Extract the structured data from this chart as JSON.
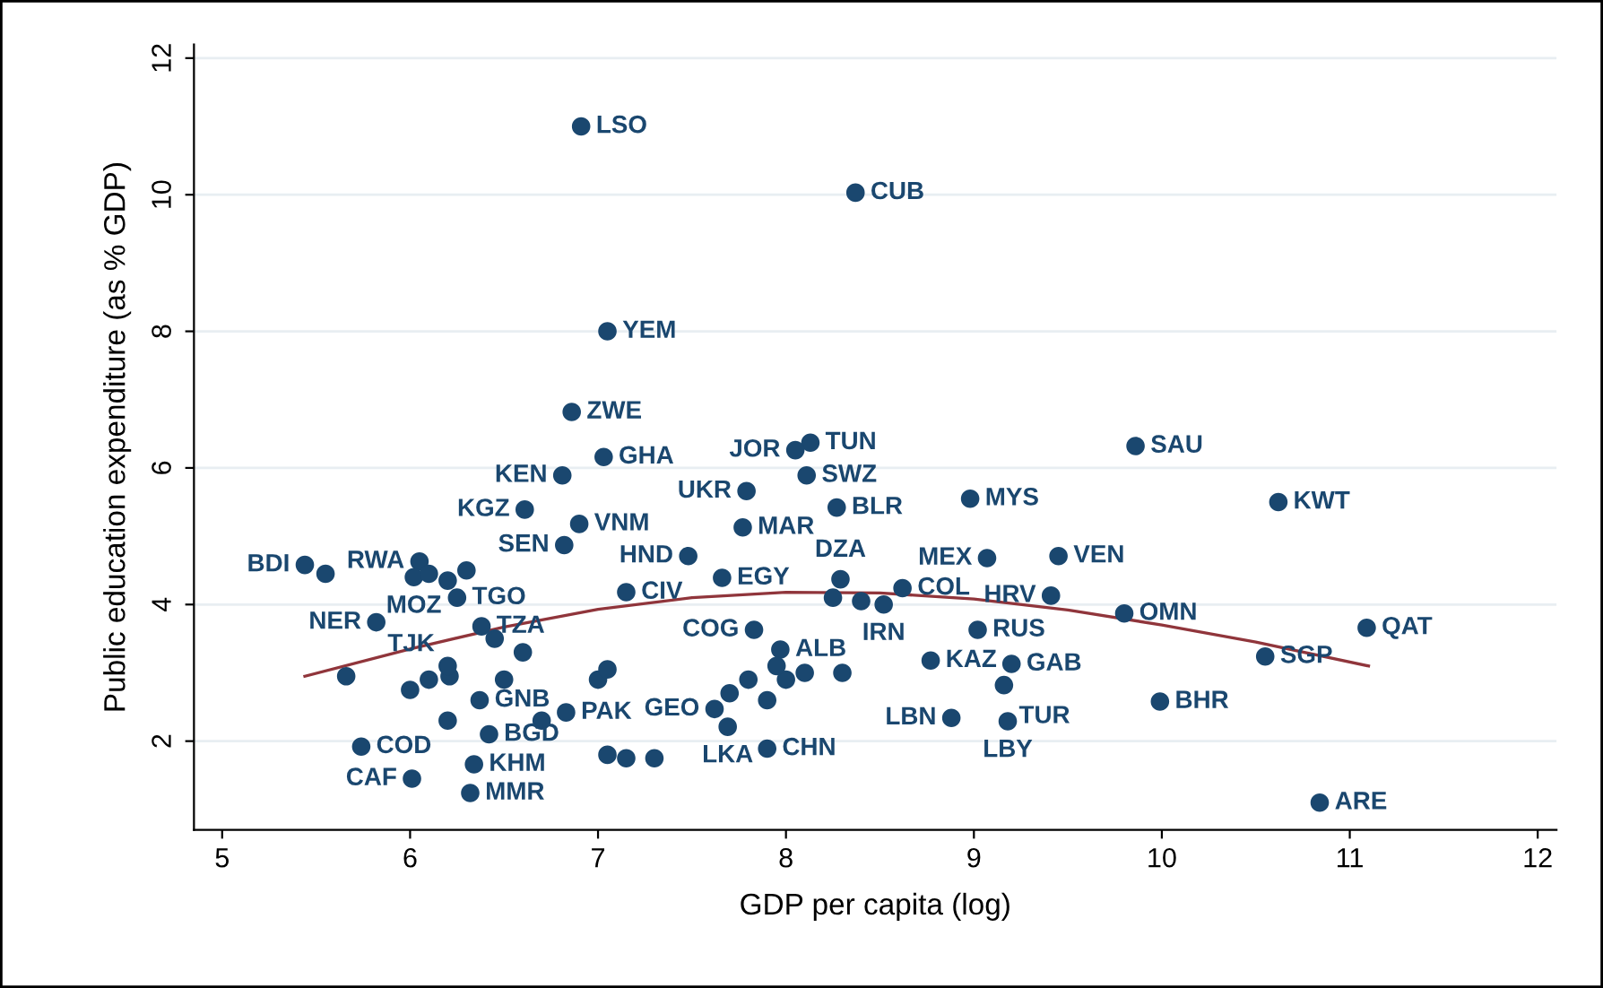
{
  "chart_data": {
    "type": "scatter",
    "xlabel": "GDP per capita (log)",
    "ylabel": "Public education expenditure (as % GDP)",
    "xlim": [
      4.85,
      12.1
    ],
    "ylim": [
      0.7,
      12.2
    ],
    "xticks": [
      5,
      6,
      7,
      8,
      9,
      10,
      11,
      12
    ],
    "yticks": [
      2,
      4,
      6,
      8,
      10,
      12
    ],
    "grid": "y",
    "marker": "circle",
    "series": [
      {
        "color": "#1a476f",
        "x": [
          6.91,
          8.37,
          7.05,
          6.86,
          7.03,
          6.81,
          6.61,
          6.9,
          6.82,
          8.13,
          8.05,
          8.11,
          7.79,
          8.27,
          7.77,
          8.98,
          9.86,
          10.62,
          9.07,
          9.45,
          9.41,
          9.8,
          11.09,
          10.55,
          10.84,
          9.99,
          9.02,
          8.77,
          9.2,
          9.16,
          8.88,
          9.18,
          8.29,
          8.62,
          8.52,
          7.66,
          7.48,
          7.15,
          7.83,
          7.97,
          7.9,
          7.69,
          7.62,
          6.05,
          5.44,
          6.02,
          6.25,
          5.82,
          6.38,
          5.74,
          6.01,
          6.34,
          6.32,
          6.42,
          6.37,
          6.21,
          6.83,
          6.1,
          5.55,
          6.2,
          6.3,
          6.45,
          6.6,
          6.2,
          6.0,
          6.1,
          6.5,
          6.2,
          6.7,
          7.0,
          7.05,
          7.05,
          7.15,
          7.3,
          7.7,
          7.8,
          7.9,
          8.0,
          8.1,
          8.3,
          8.25,
          8.4,
          7.95,
          5.66
        ],
        "values": [
          11.0,
          10.03,
          8.0,
          6.82,
          6.16,
          5.89,
          5.39,
          5.18,
          4.87,
          6.37,
          6.26,
          5.89,
          5.66,
          5.42,
          5.13,
          5.55,
          6.32,
          5.5,
          4.68,
          4.71,
          4.13,
          3.87,
          3.66,
          3.24,
          1.1,
          2.58,
          3.63,
          3.18,
          3.13,
          2.82,
          2.34,
          2.29,
          4.37,
          4.24,
          4.0,
          4.39,
          4.71,
          4.18,
          3.63,
          3.34,
          1.89,
          2.21,
          2.47,
          4.63,
          4.58,
          4.4,
          4.1,
          3.74,
          3.68,
          1.92,
          1.45,
          1.66,
          1.24,
          2.1,
          2.6,
          2.95,
          2.42,
          4.45,
          4.45,
          4.35,
          4.5,
          3.5,
          3.3,
          3.1,
          2.75,
          2.9,
          2.9,
          2.3,
          2.3,
          2.9,
          3.05,
          1.8,
          1.75,
          1.75,
          2.7,
          2.9,
          2.6,
          2.9,
          3.0,
          3.0,
          4.1,
          4.05,
          3.1,
          2.95
        ]
      },
      {
        "type": "line",
        "color": "#90353b",
        "marker": "none",
        "x": [
          5.44,
          6,
          6.5,
          7,
          7.5,
          8,
          8.5,
          9,
          9.5,
          10,
          10.5,
          11.1
        ],
        "values": [
          2.95,
          3.35,
          3.67,
          3.93,
          4.1,
          4.18,
          4.17,
          4.08,
          3.92,
          3.7,
          3.45,
          3.1
        ]
      }
    ],
    "annotations": [
      {
        "text": "LSO",
        "x": 6.91,
        "y": 11.0
      },
      {
        "text": "CUB",
        "x": 8.37,
        "y": 10.03
      },
      {
        "text": "YEM",
        "x": 7.05,
        "y": 8.0
      },
      {
        "text": "ZWE",
        "x": 6.86,
        "y": 6.82
      },
      {
        "text": "GHA",
        "x": 7.03,
        "y": 6.16
      },
      {
        "text": "KEN",
        "x": 6.81,
        "y": 5.89
      },
      {
        "text": "KGZ",
        "x": 6.61,
        "y": 5.39
      },
      {
        "text": "VNM",
        "x": 6.9,
        "y": 5.18
      },
      {
        "text": "SEN",
        "x": 6.82,
        "y": 4.87
      },
      {
        "text": "TUN",
        "x": 8.13,
        "y": 6.37
      },
      {
        "text": "JOR",
        "x": 8.05,
        "y": 6.26
      },
      {
        "text": "SWZ",
        "x": 8.11,
        "y": 5.89
      },
      {
        "text": "UKR",
        "x": 7.79,
        "y": 5.66
      },
      {
        "text": "BLR",
        "x": 8.27,
        "y": 5.42
      },
      {
        "text": "MAR",
        "x": 7.77,
        "y": 5.13
      },
      {
        "text": "MYS",
        "x": 8.98,
        "y": 5.55
      },
      {
        "text": "SAU",
        "x": 9.86,
        "y": 6.32
      },
      {
        "text": "KWT",
        "x": 10.62,
        "y": 5.5
      },
      {
        "text": "MEX",
        "x": 9.07,
        "y": 4.68
      },
      {
        "text": "VEN",
        "x": 9.45,
        "y": 4.71
      },
      {
        "text": "HRV",
        "x": 9.41,
        "y": 4.13
      },
      {
        "text": "OMN",
        "x": 9.8,
        "y": 3.87
      },
      {
        "text": "QAT",
        "x": 11.09,
        "y": 3.66
      },
      {
        "text": "SGP",
        "x": 10.55,
        "y": 3.24
      },
      {
        "text": "ARE",
        "x": 10.84,
        "y": 1.1
      },
      {
        "text": "BHR",
        "x": 9.99,
        "y": 2.58
      },
      {
        "text": "RUS",
        "x": 9.02,
        "y": 3.63
      },
      {
        "text": "KAZ",
        "x": 8.77,
        "y": 3.18
      },
      {
        "text": "GAB",
        "x": 9.2,
        "y": 3.13
      },
      {
        "text": "TUR",
        "x": 9.16,
        "y": 2.82
      },
      {
        "text": "LBN",
        "x": 8.88,
        "y": 2.34
      },
      {
        "text": "LBY",
        "x": 9.18,
        "y": 2.29
      },
      {
        "text": "DZA",
        "x": 8.29,
        "y": 4.37
      },
      {
        "text": "COL",
        "x": 8.62,
        "y": 4.24
      },
      {
        "text": "IRN",
        "x": 8.52,
        "y": 4.0
      },
      {
        "text": "EGY",
        "x": 7.66,
        "y": 4.39
      },
      {
        "text": "HND",
        "x": 7.48,
        "y": 4.71
      },
      {
        "text": "CIV",
        "x": 7.15,
        "y": 4.18
      },
      {
        "text": "COG",
        "x": 7.83,
        "y": 3.63
      },
      {
        "text": "ALB",
        "x": 7.97,
        "y": 3.34
      },
      {
        "text": "CHN",
        "x": 7.9,
        "y": 1.89
      },
      {
        "text": "LKA",
        "x": 7.69,
        "y": 2.21
      },
      {
        "text": "GEO",
        "x": 7.62,
        "y": 2.47
      },
      {
        "text": "RWA",
        "x": 6.05,
        "y": 4.63
      },
      {
        "text": "BDI",
        "x": 5.44,
        "y": 4.58
      },
      {
        "text": "MOZ",
        "x": 6.02,
        "y": 4.4
      },
      {
        "text": "TGO",
        "x": 6.25,
        "y": 4.1
      },
      {
        "text": "NER",
        "x": 5.82,
        "y": 3.74
      },
      {
        "text": "TZA",
        "x": 6.38,
        "y": 3.68
      },
      {
        "text": "COD",
        "x": 5.74,
        "y": 1.92
      },
      {
        "text": "CAF",
        "x": 6.01,
        "y": 1.45
      },
      {
        "text": "KHM",
        "x": 6.34,
        "y": 1.66
      },
      {
        "text": "MMR",
        "x": 6.32,
        "y": 1.24
      },
      {
        "text": "BGD",
        "x": 6.42,
        "y": 2.1
      },
      {
        "text": "GNB",
        "x": 6.37,
        "y": 2.6
      },
      {
        "text": "TJK",
        "x": 6.21,
        "y": 2.95
      },
      {
        "text": "PAK",
        "x": 6.83,
        "y": 2.42
      }
    ]
  }
}
